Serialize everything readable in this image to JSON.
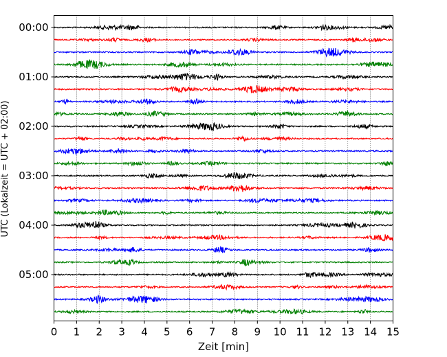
{
  "chart_data": {
    "type": "line",
    "xlabel": "Zeit  [min]",
    "ylabel": "UTC (Lokalzeit = UTC + 02:00)",
    "xlim": [
      0,
      15
    ],
    "x_ticks": [
      "0",
      "1",
      "2",
      "3",
      "4",
      "5",
      "6",
      "7",
      "8",
      "9",
      "10",
      "11",
      "12",
      "13",
      "14",
      "15"
    ],
    "y_tick_labels": [
      "00:00",
      "01:00",
      "02:00",
      "03:00",
      "04:00",
      "05:00"
    ],
    "grid": {
      "x": true,
      "y": false
    },
    "trace_interval_min": 15,
    "trace_count": 24,
    "trace_colors": [
      "#000000",
      "#ff0000",
      "#0000ff",
      "#008000"
    ]
  }
}
